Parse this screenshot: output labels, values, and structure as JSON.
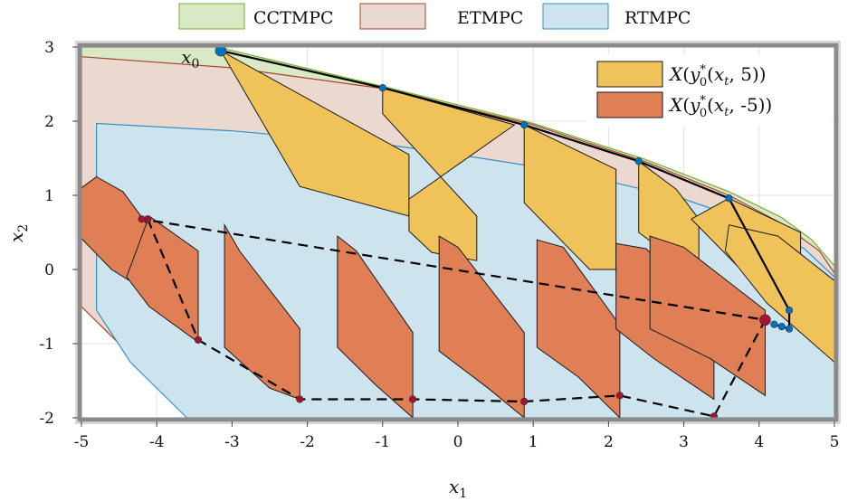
{
  "chart_data": {
    "type": "line",
    "title": "",
    "xlabel": "x1",
    "ylabel": "x2",
    "xlim": [
      -5,
      5
    ],
    "ylim": [
      -2,
      3
    ],
    "x_ticks": [
      -5,
      -4,
      -3,
      -2,
      -1,
      0,
      1,
      2,
      3,
      4,
      5
    ],
    "y_ticks": [
      -2,
      -1,
      0,
      1,
      2,
      3
    ],
    "x_tick_labels": [
      "-5",
      "-4",
      "-3",
      "-2",
      "-1",
      "0",
      "1",
      "2",
      "3",
      "4",
      "5"
    ],
    "y_tick_labels": [
      "-2",
      "-1",
      "0",
      "1",
      "2",
      "3"
    ],
    "grid": true,
    "legend_top": {
      "placement": "top",
      "entries": [
        {
          "label": "CCTMPC",
          "color": "#d9e8c5",
          "edge": "#77ac30"
        },
        {
          "label": "ETMPC",
          "color": "#ebd9d0",
          "edge": "#a2472f"
        },
        {
          "label": "RTMPC",
          "color": "#cde4ef",
          "edge": "#3a8fc0"
        }
      ]
    },
    "legend_inner": {
      "placement": "top-right",
      "entries": [
        {
          "label": "X(y0*(xt, 5))",
          "color": "#f0c35a"
        },
        {
          "label": "X(y0*(xt, -5))",
          "color": "#e07f55"
        }
      ]
    },
    "annotations": [
      {
        "text": "x0",
        "x": -3.35,
        "y": 2.95
      }
    ],
    "regions": [
      {
        "name": "CCTMPC",
        "color": "#d9e8c5",
        "edge": "#77ac30",
        "points": [
          [
            -5,
            3
          ],
          [
            -3.2,
            3
          ],
          [
            -1,
            2.47
          ],
          [
            1,
            1.97
          ],
          [
            2.5,
            1.48
          ],
          [
            3.6,
            1.05
          ],
          [
            4.3,
            0.7
          ],
          [
            4.7,
            0.4
          ],
          [
            5,
            0.05
          ],
          [
            5,
            -2
          ],
          [
            -3.5,
            -2
          ],
          [
            -4.3,
            -1.2
          ],
          [
            -5,
            -0.4
          ]
        ]
      },
      {
        "name": "ETMPC",
        "color": "#ebd9d0",
        "edge": "#a2472f",
        "points": [
          [
            -5,
            2.87
          ],
          [
            -3,
            2.72
          ],
          [
            -1,
            2.44
          ],
          [
            1,
            1.95
          ],
          [
            2.5,
            1.45
          ],
          [
            3.6,
            1.0
          ],
          [
            4.3,
            0.62
          ],
          [
            4.8,
            0.25
          ],
          [
            5,
            -0.05
          ],
          [
            5,
            -2
          ],
          [
            -3.6,
            -2
          ],
          [
            -4.3,
            -1.2
          ],
          [
            -5,
            -0.5
          ]
        ]
      },
      {
        "name": "RTMPC",
        "color": "#cde4ef",
        "edge": "#3a8fc0",
        "points": [
          [
            -4.8,
            1.97
          ],
          [
            -3,
            1.87
          ],
          [
            -1,
            1.69
          ],
          [
            0,
            1.55
          ],
          [
            1,
            1.39
          ],
          [
            2,
            1.19
          ],
          [
            3,
            0.95
          ],
          [
            4,
            0.6
          ],
          [
            4.6,
            0.28
          ],
          [
            5,
            -0.1
          ],
          [
            5,
            -2
          ],
          [
            -3.6,
            -2
          ],
          [
            -4.35,
            -1.25
          ],
          [
            -4.8,
            -0.55
          ]
        ]
      }
    ],
    "series": [
      {
        "name": "X(y0*(xt, 5))",
        "line_style": "solid",
        "marker_color": "#0072bd",
        "points": [
          [
            -3.15,
            2.95
          ],
          [
            -1.0,
            2.45
          ],
          [
            0.88,
            1.95
          ],
          [
            2.4,
            1.46
          ],
          [
            3.6,
            0.96
          ],
          [
            4.4,
            -0.55
          ],
          [
            4.4,
            -0.8
          ],
          [
            4.3,
            -0.77
          ],
          [
            4.2,
            -0.74
          ]
        ],
        "sets": [
          [
            [
              -3.15,
              2.95
            ],
            [
              -2.1,
              1.12
            ],
            [
              -0.65,
              0.72
            ],
            [
              -0.65,
              1.55
            ]
          ],
          [
            [
              -1.0,
              2.45
            ],
            [
              -1.0,
              2.1
            ],
            [
              0.25,
              0.72
            ],
            [
              0.25,
              0.12
            ],
            [
              -0.35,
              0.23
            ],
            [
              -0.65,
              0.52
            ],
            [
              -0.65,
              0.95
            ],
            [
              0.75,
              1.95
            ]
          ],
          [
            [
              0.88,
              1.95
            ],
            [
              0.88,
              0.9
            ],
            [
              1.75,
              0.0
            ],
            [
              2.1,
              0.0
            ],
            [
              2.1,
              1.35
            ]
          ],
          [
            [
              2.4,
              1.46
            ],
            [
              2.4,
              0.5
            ],
            [
              3.2,
              -0.1
            ],
            [
              3.2,
              0.68
            ],
            [
              2.9,
              1.08
            ]
          ],
          [
            [
              3.6,
              0.96
            ],
            [
              3.1,
              0.68
            ],
            [
              3.95,
              -0.2
            ],
            [
              4.3,
              -0.2
            ],
            [
              4.55,
              0.2
            ],
            [
              4.55,
              0.5
            ]
          ],
          [
            [
              3.6,
              0.6
            ],
            [
              4.25,
              0.45
            ],
            [
              5.0,
              -0.15
            ],
            [
              5.0,
              -1.25
            ],
            [
              4.1,
              -0.45
            ],
            [
              3.55,
              0.25
            ]
          ]
        ]
      },
      {
        "name": "X(y0*(xt, -5))",
        "line_style": "dashed",
        "marker_color": "#a2142f",
        "points": [
          [
            -4.12,
            0.68
          ],
          [
            -3.45,
            -0.95
          ],
          [
            -2.1,
            -1.75
          ],
          [
            -0.6,
            -1.75
          ],
          [
            0.88,
            -1.78
          ],
          [
            2.15,
            -1.7
          ],
          [
            3.4,
            -1.98
          ],
          [
            4.08,
            -0.68
          ],
          [
            -4.2,
            0.68
          ]
        ],
        "sets": [
          [
            [
              -4.8,
              1.25
            ],
            [
              -4.45,
              1.05
            ],
            [
              -4.05,
              0.5
            ],
            [
              -4.05,
              -0.35
            ],
            [
              -4.6,
              0.0
            ],
            [
              -5.0,
              0.42
            ],
            [
              -5.0,
              1.1
            ]
          ],
          [
            [
              -4.1,
              0.72
            ],
            [
              -3.45,
              0.25
            ],
            [
              -3.45,
              -0.98
            ],
            [
              -4.1,
              -0.5
            ],
            [
              -4.4,
              -0.1
            ]
          ],
          [
            [
              -3.1,
              0.6
            ],
            [
              -2.9,
              0.25
            ],
            [
              -2.1,
              -0.8
            ],
            [
              -2.1,
              -1.75
            ],
            [
              -2.5,
              -1.6
            ],
            [
              -3.1,
              -1.05
            ]
          ],
          [
            [
              -1.6,
              0.45
            ],
            [
              -1.35,
              0.25
            ],
            [
              -0.6,
              -0.85
            ],
            [
              -0.6,
              -2.0
            ],
            [
              -1.1,
              -1.55
            ],
            [
              -1.6,
              -1.05
            ]
          ],
          [
            [
              -0.25,
              0.45
            ],
            [
              0.0,
              0.3
            ],
            [
              0.88,
              -0.85
            ],
            [
              0.88,
              -2.0
            ],
            [
              0.4,
              -1.6
            ],
            [
              -0.25,
              -1.1
            ]
          ],
          [
            [
              1.05,
              0.4
            ],
            [
              1.4,
              0.3
            ],
            [
              2.15,
              -0.75
            ],
            [
              2.15,
              -2.0
            ],
            [
              1.6,
              -1.45
            ],
            [
              1.05,
              -1.05
            ]
          ],
          [
            [
              2.1,
              0.35
            ],
            [
              2.5,
              0.28
            ],
            [
              3.4,
              -0.7
            ],
            [
              3.4,
              -1.75
            ],
            [
              2.6,
              -1.2
            ],
            [
              2.1,
              -0.8
            ]
          ],
          [
            [
              2.55,
              0.45
            ],
            [
              3.0,
              0.3
            ],
            [
              4.08,
              -0.55
            ],
            [
              4.08,
              -1.7
            ],
            [
              3.35,
              -1.2
            ],
            [
              2.55,
              -0.8
            ]
          ]
        ]
      }
    ]
  }
}
